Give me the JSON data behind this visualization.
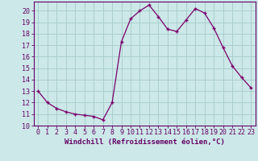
{
  "x": [
    0,
    1,
    2,
    3,
    4,
    5,
    6,
    7,
    8,
    9,
    10,
    11,
    12,
    13,
    14,
    15,
    16,
    17,
    18,
    19,
    20,
    21,
    22,
    23
  ],
  "y": [
    13.0,
    12.0,
    11.5,
    11.2,
    11.0,
    10.9,
    10.8,
    10.5,
    12.0,
    17.3,
    19.3,
    20.0,
    20.5,
    19.5,
    18.4,
    18.2,
    19.2,
    20.2,
    19.8,
    18.5,
    16.8,
    15.2,
    14.2,
    13.3
  ],
  "line_color": "#7B006B",
  "marker": "+",
  "bg_color": "#cce8e8",
  "grid_color": "#aacece",
  "xlabel": "Windchill (Refroidissement éolien,°C)",
  "xlim": [
    -0.5,
    23.5
  ],
  "ylim": [
    10,
    20.8
  ],
  "xticks": [
    0,
    1,
    2,
    3,
    4,
    5,
    6,
    7,
    8,
    9,
    10,
    11,
    12,
    13,
    14,
    15,
    16,
    17,
    18,
    19,
    20,
    21,
    22,
    23
  ],
  "yticks": [
    10,
    11,
    12,
    13,
    14,
    15,
    16,
    17,
    18,
    19,
    20
  ],
  "title_color": "#660066",
  "label_fontsize": 6.5,
  "tick_fontsize": 6.0
}
